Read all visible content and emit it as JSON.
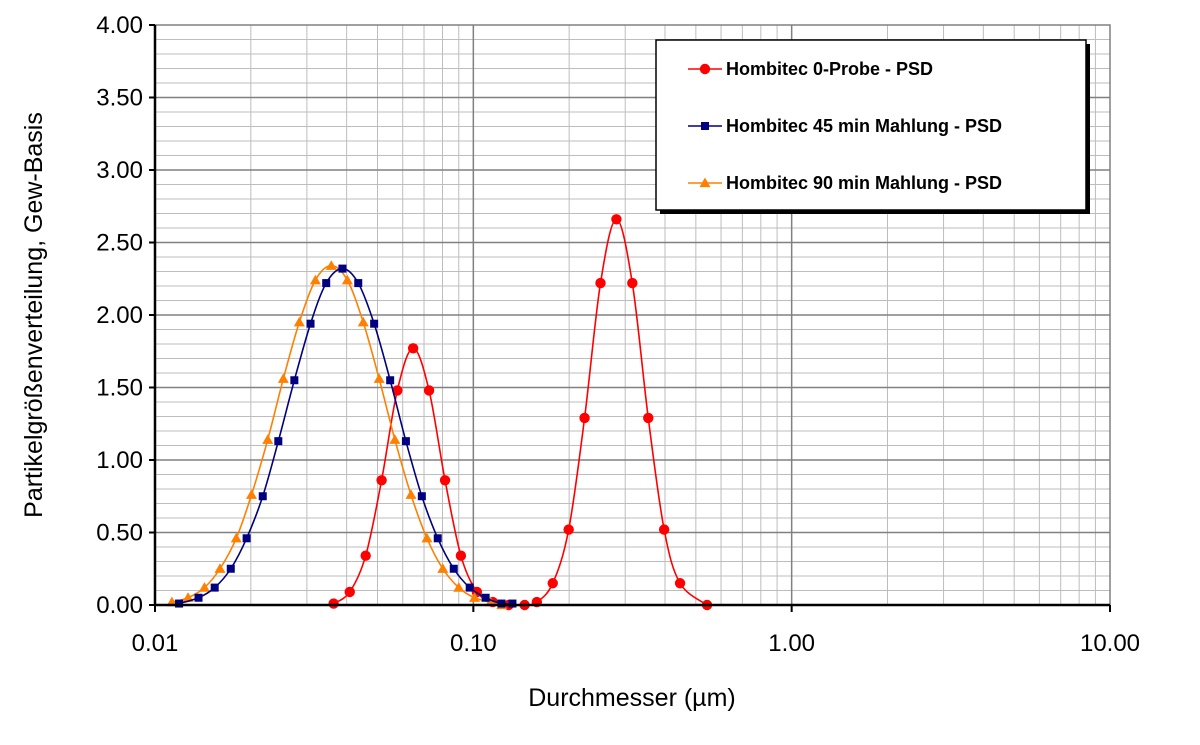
{
  "chart_data": {
    "type": "line",
    "x_scale": "log",
    "xlim": [
      0.01,
      10
    ],
    "ylim": [
      0,
      4
    ],
    "x_ticks": [
      {
        "value": 0.01,
        "label": "0.01"
      },
      {
        "value": 0.1,
        "label": "0.10"
      },
      {
        "value": 1,
        "label": "1.00"
      },
      {
        "value": 10,
        "label": "10.00"
      }
    ],
    "y_ticks": [
      {
        "value": 0,
        "label": "0.00"
      },
      {
        "value": 0.5,
        "label": "0.50"
      },
      {
        "value": 1,
        "label": "1.00"
      },
      {
        "value": 1.5,
        "label": "1.50"
      },
      {
        "value": 2,
        "label": "2.00"
      },
      {
        "value": 2.5,
        "label": "2.50"
      },
      {
        "value": 3,
        "label": "3.00"
      },
      {
        "value": 3.5,
        "label": "3.50"
      },
      {
        "value": 4,
        "label": "4.00"
      }
    ],
    "xlabel": "Durchmesser (µm)",
    "ylabel": "Partikelgrößenverteilung, Gew-Basis",
    "grid": true,
    "legend_position": "top-right",
    "series": [
      {
        "name": "Hombitec 0-Probe - PSD",
        "color": "#ff0000",
        "marker": "circle",
        "points": [
          [
            0.0364,
            0.01
          ],
          [
            0.0409,
            0.09
          ],
          [
            0.0459,
            0.34
          ],
          [
            0.0515,
            0.86
          ],
          [
            0.0577,
            1.48
          ],
          [
            0.0647,
            1.77
          ],
          [
            0.0726,
            1.48
          ],
          [
            0.0815,
            0.86
          ],
          [
            0.0914,
            0.34
          ],
          [
            0.1026,
            0.09
          ],
          [
            0.1151,
            0.02
          ],
          [
            0.1291,
            0.0
          ],
          [
            0.1449,
            0.0
          ],
          [
            0.1583,
            0.02
          ],
          [
            0.1776,
            0.15
          ],
          [
            0.1993,
            0.52
          ],
          [
            0.2236,
            1.29
          ],
          [
            0.2509,
            2.22
          ],
          [
            0.2815,
            2.66
          ],
          [
            0.3158,
            2.22
          ],
          [
            0.3544,
            1.29
          ],
          [
            0.3976,
            0.52
          ],
          [
            0.4461,
            0.15
          ],
          [
            0.5423,
            0.0
          ]
        ]
      },
      {
        "name": "Hombitec 45 min Mahlung - PSD",
        "color": "#000080",
        "marker": "square",
        "points": [
          [
            0.0119,
            0.01
          ],
          [
            0.0137,
            0.05
          ],
          [
            0.0154,
            0.12
          ],
          [
            0.0173,
            0.25
          ],
          [
            0.0194,
            0.46
          ],
          [
            0.0218,
            0.75
          ],
          [
            0.0244,
            1.13
          ],
          [
            0.0274,
            1.55
          ],
          [
            0.0308,
            1.94
          ],
          [
            0.0345,
            2.22
          ],
          [
            0.0388,
            2.32
          ],
          [
            0.0435,
            2.22
          ],
          [
            0.0488,
            1.94
          ],
          [
            0.0548,
            1.55
          ],
          [
            0.0614,
            1.13
          ],
          [
            0.0689,
            0.75
          ],
          [
            0.0773,
            0.46
          ],
          [
            0.0868,
            0.25
          ],
          [
            0.0974,
            0.12
          ],
          [
            0.1093,
            0.05
          ],
          [
            0.1226,
            0.01
          ],
          [
            0.1327,
            0.01
          ]
        ]
      },
      {
        "name": "Hombitec 90 min Mahlung - PSD",
        "color": "#ff8000",
        "marker": "triangle",
        "points": [
          [
            0.0113,
            0.02
          ],
          [
            0.0127,
            0.05
          ],
          [
            0.0143,
            0.12
          ],
          [
            0.016,
            0.25
          ],
          [
            0.018,
            0.46
          ],
          [
            0.0201,
            0.76
          ],
          [
            0.0226,
            1.14
          ],
          [
            0.0253,
            1.56
          ],
          [
            0.0284,
            1.95
          ],
          [
            0.0319,
            2.24
          ],
          [
            0.0358,
            2.34
          ],
          [
            0.0402,
            2.24
          ],
          [
            0.0451,
            1.95
          ],
          [
            0.0506,
            1.56
          ],
          [
            0.0567,
            1.14
          ],
          [
            0.0637,
            0.76
          ],
          [
            0.0715,
            0.46
          ],
          [
            0.0802,
            0.25
          ],
          [
            0.09,
            0.12
          ],
          [
            0.1009,
            0.05
          ],
          [
            0.1133,
            0.02
          ],
          [
            0.1229,
            0.0
          ]
        ]
      }
    ]
  }
}
